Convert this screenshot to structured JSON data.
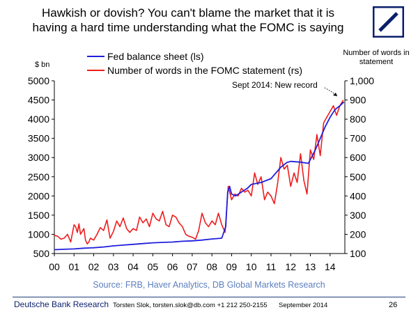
{
  "title_line1": "Hawkish or dovish? You can't blame the market that it is",
  "title_line2": "having a hard time understanding what the FOMC is saying",
  "left_unit": "$ bn",
  "right_unit_line1": "Number of words in",
  "right_unit_line2": "statement",
  "source": "Source: FRB, Haver Analytics, DB Global Markets Research",
  "footer": {
    "brand": "Deutsche Bank Research",
    "author": "Torsten Slok, torsten.slok@db.com +1 212 250-2155",
    "date": "September 2014",
    "page": "26"
  },
  "colors": {
    "fed": "#1f1fdd",
    "fomc": "#ee1c1c",
    "brand": "#0a1f6b",
    "source": "#5b7fbf"
  },
  "logo_icon": "deutsche-bank-logo-icon",
  "chart_data": {
    "type": "line",
    "x_ticks": [
      "00",
      "01",
      "02",
      "03",
      "04",
      "05",
      "06",
      "07",
      "08",
      "09",
      "10",
      "11",
      "12",
      "13",
      "14"
    ],
    "xlim": [
      2000,
      2014.75
    ],
    "ylim_left": [
      500,
      5000
    ],
    "ylim_right": [
      100,
      1000
    ],
    "y_ticks_left": [
      "500",
      "1000",
      "1500",
      "2000",
      "2500",
      "3000",
      "3500",
      "4000",
      "4500",
      "5000"
    ],
    "y_ticks_right": [
      "100",
      "200",
      "300",
      "400",
      "500",
      "600",
      "700",
      "800",
      "900",
      "1,000"
    ],
    "annotation": "Sept 2014: New record",
    "series": [
      {
        "name": "Fed balance sheet (ls)",
        "axis": "left",
        "x": [
          2000.0,
          2000.5,
          2001.0,
          2001.5,
          2002.0,
          2002.5,
          2003.0,
          2003.5,
          2004.0,
          2004.5,
          2005.0,
          2005.5,
          2006.0,
          2006.5,
          2007.0,
          2007.5,
          2008.0,
          2008.5,
          2008.7,
          2008.8,
          2008.9,
          2009.0,
          2009.2,
          2009.5,
          2009.8,
          2010.0,
          2010.5,
          2011.0,
          2011.5,
          2011.8,
          2012.0,
          2012.5,
          2012.9,
          2013.0,
          2013.25,
          2013.5,
          2013.75,
          2014.0,
          2014.25,
          2014.5,
          2014.7
        ],
        "values": [
          600,
          610,
          620,
          640,
          650,
          670,
          700,
          720,
          740,
          760,
          780,
          790,
          800,
          820,
          830,
          850,
          880,
          900,
          1200,
          2100,
          2250,
          2050,
          2000,
          2100,
          2200,
          2300,
          2350,
          2450,
          2750,
          2870,
          2900,
          2880,
          2850,
          2950,
          3200,
          3500,
          3800,
          4050,
          4250,
          4350,
          4450
        ]
      },
      {
        "name": "Number of words in the FOMC statement (rs)",
        "axis": "right",
        "x": [
          2000.0,
          2000.17,
          2000.33,
          2000.5,
          2000.67,
          2000.83,
          2001.0,
          2001.08,
          2001.17,
          2001.25,
          2001.33,
          2001.5,
          2001.58,
          2001.67,
          2001.75,
          2001.83,
          2002.0,
          2002.17,
          2002.33,
          2002.5,
          2002.67,
          2002.83,
          2003.0,
          2003.17,
          2003.33,
          2003.5,
          2003.67,
          2003.83,
          2004.0,
          2004.17,
          2004.33,
          2004.5,
          2004.67,
          2004.83,
          2005.0,
          2005.17,
          2005.33,
          2005.5,
          2005.67,
          2005.83,
          2006.0,
          2006.17,
          2006.33,
          2006.5,
          2006.67,
          2006.83,
          2007.0,
          2007.17,
          2007.33,
          2007.5,
          2007.67,
          2007.83,
          2008.0,
          2008.17,
          2008.33,
          2008.5,
          2008.67,
          2008.83,
          2009.0,
          2009.17,
          2009.33,
          2009.5,
          2009.67,
          2009.83,
          2010.0,
          2010.17,
          2010.33,
          2010.5,
          2010.67,
          2010.83,
          2011.0,
          2011.17,
          2011.33,
          2011.5,
          2011.67,
          2011.83,
          2012.0,
          2012.17,
          2012.33,
          2012.5,
          2012.67,
          2012.83,
          2013.0,
          2013.17,
          2013.33,
          2013.5,
          2013.67,
          2013.83,
          2014.0,
          2014.17,
          2014.33,
          2014.5,
          2014.67
        ],
        "values": [
          195,
          190,
          175,
          180,
          200,
          160,
          250,
          240,
          210,
          255,
          200,
          230,
          170,
          150,
          160,
          180,
          170,
          200,
          235,
          220,
          275,
          180,
          215,
          270,
          240,
          285,
          230,
          210,
          230,
          220,
          290,
          260,
          280,
          240,
          310,
          280,
          270,
          320,
          250,
          240,
          300,
          290,
          260,
          240,
          200,
          190,
          185,
          175,
          220,
          310,
          260,
          240,
          270,
          250,
          310,
          250,
          210,
          450,
          380,
          410,
          400,
          440,
          420,
          430,
          400,
          520,
          460,
          500,
          380,
          420,
          400,
          360,
          460,
          600,
          540,
          560,
          450,
          520,
          470,
          620,
          480,
          410,
          640,
          590,
          720,
          610,
          780,
          810,
          840,
          870,
          820,
          870,
          900
        ]
      }
    ]
  }
}
